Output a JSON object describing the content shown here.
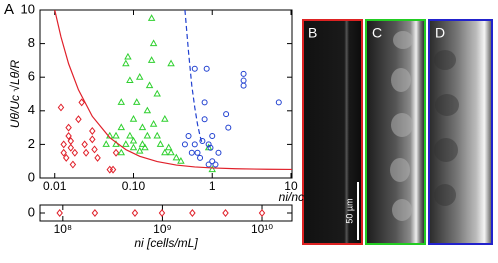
{
  "panel_labels": [
    "A",
    "B",
    "C",
    "D"
  ],
  "scale_bar": "50 µm",
  "chart_data": [
    {
      "type": "scatter",
      "xlabel": "ni/nc",
      "ylabel": "Uθ/Uc √Lθ/R",
      "xlog": true,
      "xlim": [
        0.0065,
        10.3
      ],
      "ylim": [
        0,
        10
      ],
      "xticks": [
        0.01,
        {
          "value": 0.1,
          "label": "0.10"
        },
        1,
        10
      ],
      "yticks": [
        0,
        2,
        4,
        6,
        8,
        10
      ],
      "series": [
        {
          "color": "#e0202a",
          "marker": "diamond",
          "x": [
            0.012,
            0.013,
            0.013,
            0.014,
            0.015,
            0.015,
            0.016,
            0.016,
            0.017,
            0.018,
            0.02,
            0.022,
            0.024,
            0.025,
            0.03,
            0.03,
            0.032,
            0.035,
            0.05,
            0.055,
            0.06
          ],
          "values": [
            4.2,
            2.0,
            1.5,
            1.2,
            2.5,
            3.0,
            2.2,
            1.8,
            0.8,
            1.5,
            3.5,
            4.5,
            2.0,
            1.5,
            2.8,
            2.3,
            1.7,
            1.2,
            0.5,
            0.5,
            1.5
          ]
        },
        {
          "color": "#2fd02f",
          "marker": "triangle",
          "x": [
            0.045,
            0.05,
            0.06,
            0.06,
            0.07,
            0.07,
            0.07,
            0.08,
            0.08,
            0.085,
            0.09,
            0.09,
            0.1,
            0.1,
            0.1,
            0.11,
            0.12,
            0.12,
            0.13,
            0.13,
            0.14,
            0.15,
            0.15,
            0.16,
            0.17,
            0.17,
            0.18,
            0.18,
            0.2,
            0.2,
            0.22,
            0.25,
            0.25,
            0.28,
            0.3,
            0.3,
            0.35,
            0.4,
            0.9,
            1.0
          ],
          "values": [
            2.0,
            2.5,
            2.5,
            2.0,
            3.0,
            1.5,
            4.5,
            2.0,
            6.8,
            7.2,
            2.5,
            5.8,
            2.2,
            3.5,
            1.8,
            4.5,
            6.0,
            1.6,
            3.0,
            2.0,
            1.8,
            2.5,
            4.0,
            5.5,
            9.5,
            7.0,
            8.0,
            3.2,
            5.0,
            2.5,
            2.0,
            3.5,
            1.5,
            1.8,
            6.8,
            1.5,
            1.2,
            1.0,
            1.8,
            0.5
          ]
        },
        {
          "color": "#2040d0",
          "marker": "circle",
          "x": [
            0.45,
            0.5,
            0.55,
            0.6,
            0.6,
            0.65,
            0.7,
            0.75,
            0.8,
            0.8,
            0.85,
            0.9,
            0.9,
            0.95,
            1.0,
            1.0,
            1.1,
            1.2,
            1.5,
            1.6,
            2.5,
            2.5,
            2.5,
            7.0
          ],
          "values": [
            2.0,
            2.5,
            1.5,
            6.5,
            2.0,
            1.5,
            1.2,
            2.2,
            3.5,
            4.5,
            6.5,
            2.0,
            0.8,
            1.8,
            2.5,
            1.0,
            0.8,
            1.5,
            3.8,
            3.0,
            6.2,
            5.8,
            5.5,
            4.5
          ]
        },
        {
          "color": "#e0202a",
          "marker": "line",
          "x": [
            0.01,
            0.012,
            0.015,
            0.02,
            0.03,
            0.05,
            0.08,
            0.12,
            0.2,
            0.35,
            0.6,
            1,
            2,
            5,
            10.3
          ],
          "values": [
            10.0,
            8.4,
            6.8,
            5.25,
            3.67,
            2.4,
            1.69,
            1.29,
            0.98,
            0.77,
            0.66,
            0.6,
            0.55,
            0.52,
            0.51
          ]
        },
        {
          "color": "#2040d0",
          "marker": "dashed-line",
          "x": [
            0.45,
            0.5,
            0.55,
            0.6,
            0.65,
            0.7,
            0.75
          ],
          "values": [
            10,
            7.5,
            5.5,
            4.2,
            3.2,
            2.5,
            2.0
          ]
        }
      ]
    },
    {
      "type": "scatter",
      "xlabel": "ni [cells/mL]",
      "xlog": true,
      "xlim": [
        59000000,
        20000000000
      ],
      "ylim": [
        -1,
        1
      ],
      "xticks": [
        {
          "value": 100000000,
          "label": "10⁸"
        },
        {
          "value": 1000000000,
          "label": "10⁹"
        },
        {
          "value": 10000000000,
          "label": "10¹⁰"
        }
      ],
      "yticks": [
        0
      ],
      "series": [
        {
          "color": "#e0202a",
          "marker": "diamond",
          "x": [
            93000000,
            210000000,
            530000000,
            990000000,
            2000000000,
            4300000000,
            10000000000
          ],
          "values": [
            0,
            0,
            0,
            0,
            0,
            0,
            0
          ]
        }
      ]
    }
  ]
}
